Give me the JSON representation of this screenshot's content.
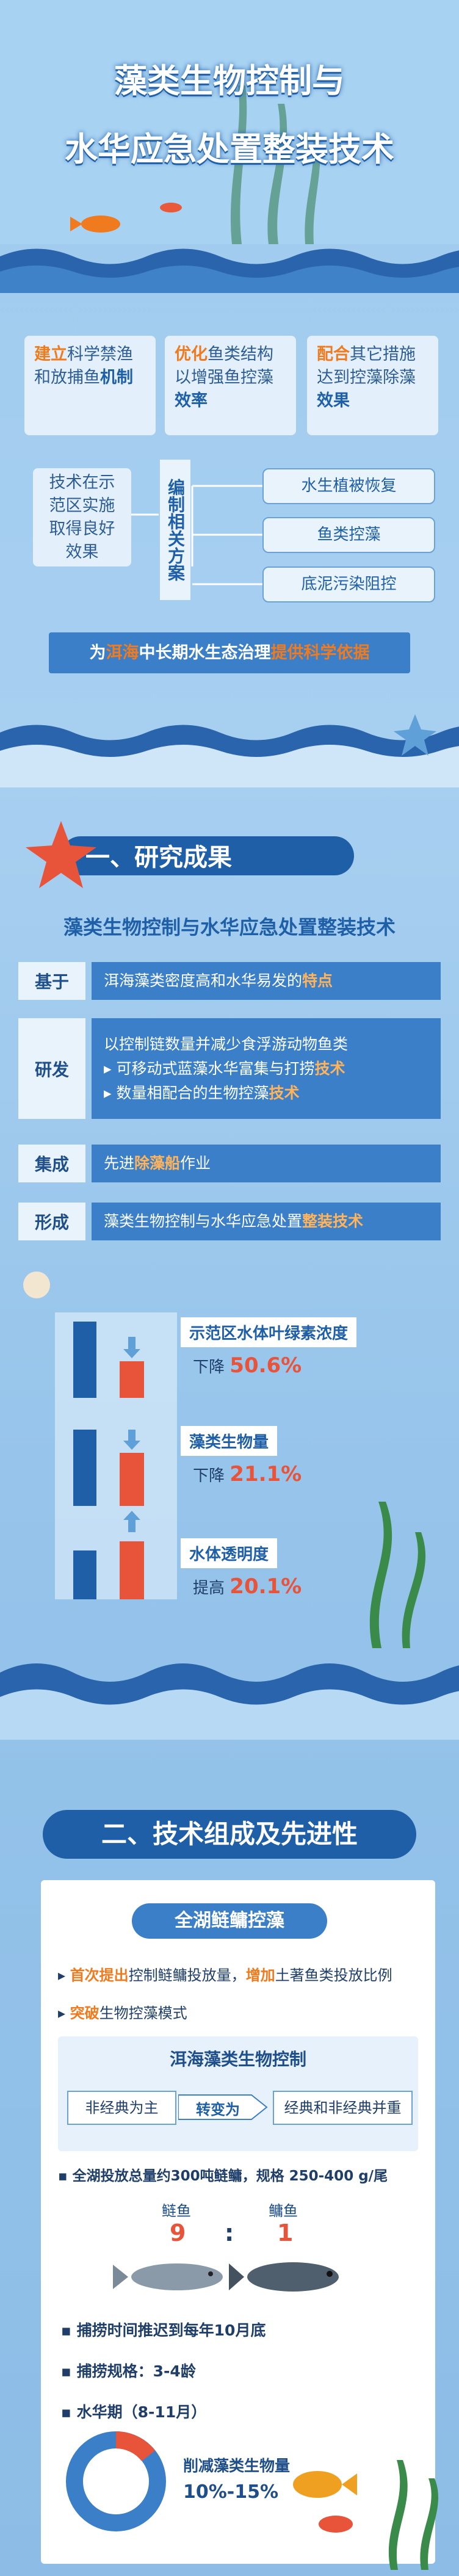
{
  "header": {
    "title_lines": [
      "藻类生物控制与",
      "水华应急处置整装技术"
    ]
  },
  "intro": {
    "boxes": [
      {
        "parts": [
          "建立",
          "科学禁渔和放捕鱼",
          "机制"
        ]
      },
      {
        "parts": [
          "优化",
          "鱼类结构以增强鱼控藻",
          "效率"
        ]
      },
      {
        "parts": [
          "配合",
          "其它措施达到控藻除藻",
          "效果"
        ]
      }
    ],
    "result_box": "技术在示范区实施取得良好效果",
    "plan_label": "编制相关方案",
    "plans": [
      "水生植被恢复",
      "鱼类控藻",
      "底泥污染阻控"
    ],
    "banner": [
      "为",
      "洱海",
      "中长期水生态治理",
      "提供科学依据"
    ]
  },
  "section1": {
    "heading": "一、研究成果",
    "subtitle": "藻类生物控制与水华应急处置整装技术",
    "rows": [
      {
        "label": "基于",
        "lines": [
          [
            "洱海藻类密度高和水华易发的",
            "特点"
          ]
        ]
      },
      {
        "label": "研发",
        "lines": [
          [
            "以控制链数量并减少食浮游动物鱼类"
          ],
          [
            "可移动式蓝藻水华富集与打捞",
            "技术"
          ],
          [
            "数量相配合的生物控藻",
            "技术"
          ]
        ]
      },
      {
        "label": "集成",
        "lines": [
          [
            "先进",
            "除藻船",
            "作业"
          ]
        ]
      },
      {
        "label": "形成",
        "lines": [
          [
            "藻类生物控制与水华应急处置",
            "整装技术"
          ]
        ]
      }
    ],
    "results": [
      {
        "metric": "示范区水体叶绿素浓度",
        "change": "下降",
        "value": "50.6%"
      },
      {
        "metric": "藻类生物量",
        "change": "下降",
        "value": "21.1%"
      },
      {
        "metric": "水体透明度",
        "change": "提高",
        "value": "20.1%"
      }
    ]
  },
  "section2": {
    "heading": "二、技术组成及先进性",
    "card_title": "全湖鲢鳙控藻",
    "bullets": [
      [
        "首次提出",
        "控制鲢鳙投放量，",
        "增加",
        "土著鱼类投放比例"
      ],
      [
        "突破",
        "生物控藻模式"
      ]
    ],
    "flow": {
      "title": "洱海藻类生物控制",
      "from": "非经典为主",
      "arrow": "转变为",
      "to": "经典和非经典并重"
    },
    "stocking": "全湖投放总量约300吨鲢鳙，规格 250-400 g/尾",
    "fish": {
      "names": [
        "鲢鱼",
        "鳙鱼"
      ],
      "ratio": [
        "9",
        ":",
        "1"
      ]
    },
    "facts": [
      "捕捞时间推迟到每年10月底",
      "捕捞规格：3-4龄",
      "水华期（8-11月）"
    ],
    "reduction": {
      "label": "削减藻类生物量",
      "value": "10%-15%"
    }
  }
}
